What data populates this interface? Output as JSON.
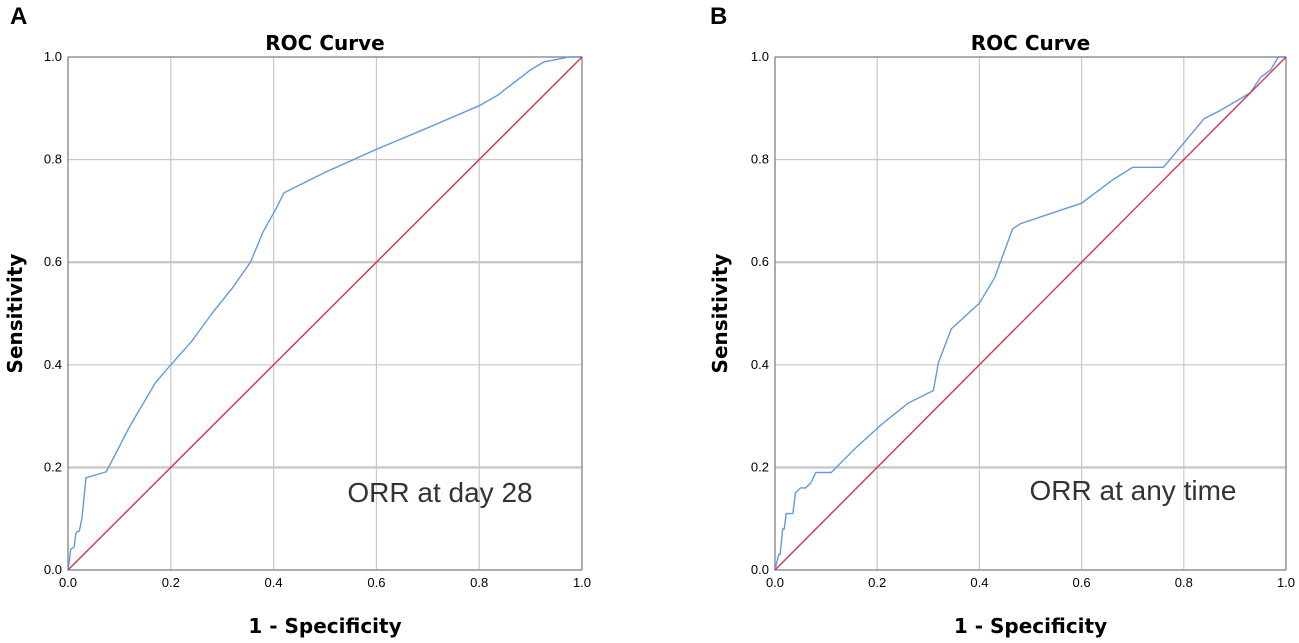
{
  "chart_data": [
    {
      "type": "line",
      "panel_label": "A",
      "title": "ROC Curve",
      "xlabel": "1 - Specificity",
      "ylabel": "Sensitivity",
      "xlim": [
        0,
        1
      ],
      "ylim": [
        0,
        1
      ],
      "x_ticks": [
        "0.0",
        "0.2",
        "0.4",
        "0.6",
        "0.8",
        "1.0"
      ],
      "y_ticks": [
        "0.0",
        "0.2",
        "0.4",
        "0.6",
        "0.8",
        "1.0"
      ],
      "annotation": "ORR at day 28",
      "series": [
        {
          "name": "ROC",
          "color": "#5f9be0",
          "x": [
            0.0,
            0.003,
            0.005,
            0.012,
            0.015,
            0.018,
            0.022,
            0.025,
            0.027,
            0.035,
            0.07,
            0.075,
            0.12,
            0.17,
            0.2,
            0.24,
            0.28,
            0.32,
            0.355,
            0.38,
            0.405,
            0.42,
            0.5,
            0.6,
            0.7,
            0.8,
            0.835,
            0.9,
            0.925,
            0.975,
            1.0
          ],
          "y": [
            0.0,
            0.02,
            0.04,
            0.045,
            0.07,
            0.075,
            0.076,
            0.09,
            0.1,
            0.18,
            0.19,
            0.192,
            0.28,
            0.365,
            0.4,
            0.445,
            0.5,
            0.55,
            0.6,
            0.66,
            0.705,
            0.735,
            0.775,
            0.82,
            0.862,
            0.905,
            0.925,
            0.975,
            0.99,
            1.0,
            1.0
          ]
        },
        {
          "name": "Reference Line",
          "color": "#d9304a",
          "x": [
            0,
            1
          ],
          "y": [
            0,
            1
          ]
        }
      ]
    },
    {
      "type": "line",
      "panel_label": "B",
      "title": "ROC Curve",
      "xlabel": "1 - Specificity",
      "ylabel": "Sensitivity",
      "xlim": [
        0,
        1
      ],
      "ylim": [
        0,
        1
      ],
      "x_ticks": [
        "0.0",
        "0.2",
        "0.4",
        "0.6",
        "0.8",
        "1.0"
      ],
      "y_ticks": [
        "0.0",
        "0.2",
        "0.4",
        "0.6",
        "0.8",
        "1.0"
      ],
      "annotation": "ORR at any time",
      "series": [
        {
          "name": "ROC",
          "color": "#5f9be0",
          "x": [
            0.0,
            0.007,
            0.01,
            0.015,
            0.018,
            0.022,
            0.027,
            0.035,
            0.04,
            0.05,
            0.06,
            0.07,
            0.08,
            0.09,
            0.11,
            0.13,
            0.16,
            0.21,
            0.26,
            0.31,
            0.32,
            0.345,
            0.4,
            0.43,
            0.465,
            0.48,
            0.6,
            0.66,
            0.7,
            0.76,
            0.84,
            0.87,
            0.93,
            0.95,
            0.97,
            0.985,
            1.0
          ],
          "y": [
            0.0,
            0.03,
            0.03,
            0.08,
            0.08,
            0.11,
            0.11,
            0.11,
            0.15,
            0.16,
            0.16,
            0.17,
            0.19,
            0.19,
            0.19,
            0.21,
            0.24,
            0.285,
            0.325,
            0.35,
            0.405,
            0.47,
            0.52,
            0.57,
            0.665,
            0.675,
            0.715,
            0.76,
            0.785,
            0.785,
            0.88,
            0.895,
            0.93,
            0.96,
            0.975,
            1.0,
            1.0
          ]
        },
        {
          "name": "Reference Line",
          "color": "#d9304a",
          "x": [
            0,
            1
          ],
          "y": [
            0,
            1
          ]
        }
      ]
    }
  ]
}
